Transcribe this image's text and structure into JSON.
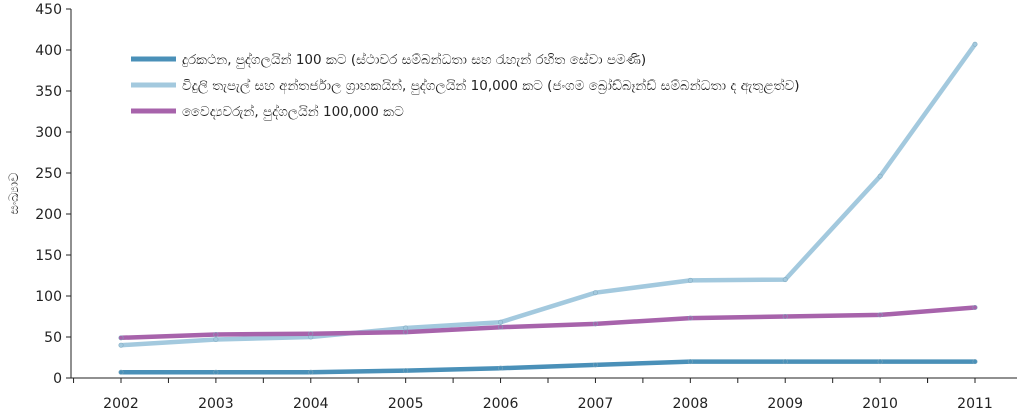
{
  "chart_data": {
    "type": "line",
    "ylabel": "සංඛ්‍යාව",
    "xlabel": "",
    "x": [
      "2002",
      "2003",
      "2004",
      "2005",
      "2006",
      "2007",
      "2008",
      "2009",
      "2010",
      "2011"
    ],
    "ylim": [
      0,
      450
    ],
    "yticks": [
      0,
      50,
      100,
      150,
      200,
      250,
      300,
      350,
      400,
      450
    ],
    "grid": false,
    "legend_position": "top-left",
    "series": [
      {
        "name": "දුරකථන, පුද්ගලයින් 100 කට (ස්ථාවර සම්බන්ධතා සහ රැහැන් රහිත සේවා පමණි)",
        "color": "#4a90b8",
        "values": [
          7,
          7,
          7,
          9,
          12,
          16,
          20,
          20,
          20,
          20
        ]
      },
      {
        "name": "විදුලි තැපැල් සහ අන්තර්ජාල ග්‍රාහකයින්, පුද්ගලයින් 10,000 කට (ජංගම බ්‍රෝඩ්බෑන්ඩ් සම්බන්ධතා ද ඇතුළත්ව)",
        "color": "#a3c9de",
        "values": [
          40,
          47,
          50,
          61,
          68,
          104,
          119,
          120,
          246,
          407
        ]
      },
      {
        "name": "වෛද්‍යවරුන්, පුද්ගලයින් 100,000 කට",
        "color": "#a763ab",
        "values": [
          49,
          53,
          54,
          56,
          62,
          66,
          73,
          75,
          77,
          86
        ]
      }
    ]
  }
}
